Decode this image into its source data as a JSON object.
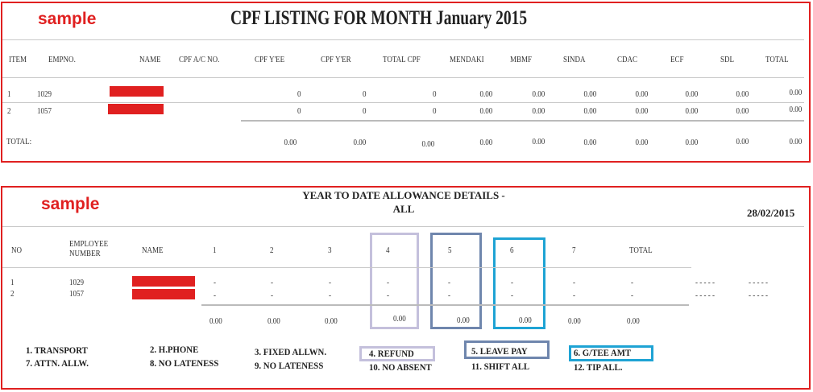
{
  "cpf": {
    "sample_label": "sample",
    "title": "CPF LISTING FOR MONTH January 2015",
    "headers": [
      "ITEM",
      "EMPNO.",
      "NAME",
      "CPF A/C NO.",
      "CPF Y'EE",
      "CPF Y'ER",
      "TOTAL CPF",
      "MENDAKI",
      "MBMF",
      "SINDA",
      "CDAC",
      "ECF",
      "SDL",
      "TOTAL"
    ],
    "rows": [
      {
        "item": "1",
        "empno": "1029",
        "cpf_yee": "0",
        "cpf_yer": "0",
        "total_cpf": "0",
        "mendaki": "0.00",
        "mbmf": "0.00",
        "sinda": "0.00",
        "cdac": "0.00",
        "ecf": "0.00",
        "sdl": "0.00",
        "total": "0.00"
      },
      {
        "item": "2",
        "empno": "1057",
        "cpf_yee": "0",
        "cpf_yer": "0",
        "total_cpf": "0",
        "mendaki": "0.00",
        "mbmf": "0.00",
        "sinda": "0.00",
        "cdac": "0.00",
        "ecf": "0.00",
        "sdl": "0.00",
        "total": "0.00"
      }
    ],
    "total_label": "TOTAL:",
    "totals": {
      "cpf_yee": "0.00",
      "cpf_yer": "0.00",
      "total_cpf": "0.00",
      "mendaki": "0.00",
      "mbmf": "0.00",
      "sinda": "0.00",
      "cdac": "0.00",
      "ecf": "0.00",
      "sdl": "0.00",
      "total": "0.00"
    }
  },
  "ytd": {
    "sample_label": "sample",
    "title_line1": "YEAR TO DATE ALLOWANCE DETAILS -",
    "title_line2": "ALL",
    "date": "28/02/2015",
    "headers": {
      "no": "NO",
      "emp_line1": "EMPLOYEE",
      "emp_line2": "NUMBER",
      "name": "NAME",
      "c1": "1",
      "c2": "2",
      "c3": "3",
      "c4": "4",
      "c5": "5",
      "c6": "6",
      "c7": "7",
      "total": "TOTAL"
    },
    "rows": [
      {
        "no": "1",
        "emp": "1029",
        "c1": "-",
        "c2": "-",
        "c3": "-",
        "c4": "-",
        "c5": "-",
        "c6": "-",
        "c7": "-",
        "total": "-",
        "extra1": "- - - - -",
        "extra2": "- - - - -"
      },
      {
        "no": "2",
        "emp": "1057",
        "c1": "-",
        "c2": "-",
        "c3": "-",
        "c4": "-",
        "c5": "-",
        "c6": "-",
        "c7": "-",
        "total": "-",
        "extra1": "- - - - -",
        "extra2": "- - - - -"
      }
    ],
    "totals": {
      "c1": "0.00",
      "c2": "0.00",
      "c3": "0.00",
      "c4": "0.00",
      "c5": "0.00",
      "c6": "0.00",
      "c7": "0.00",
      "total": "0.00"
    },
    "legend": [
      "1. TRANSPORT",
      "2. H.PHONE",
      "3. FIXED ALLWN.",
      "4. REFUND",
      "5. LEAVE PAY",
      "6. G/TEE AMT",
      "7. ATTN. ALLW.",
      "8. NO LATENESS",
      "9. NO LATENESS",
      "10. NO ABSENT",
      "11. SHIFT ALL",
      "12. TIP ALL."
    ]
  },
  "colors": {
    "sample_red": "#e02020",
    "box4": "#c4c0dc",
    "box5": "#6f86ad",
    "box6": "#1ea3d4"
  }
}
